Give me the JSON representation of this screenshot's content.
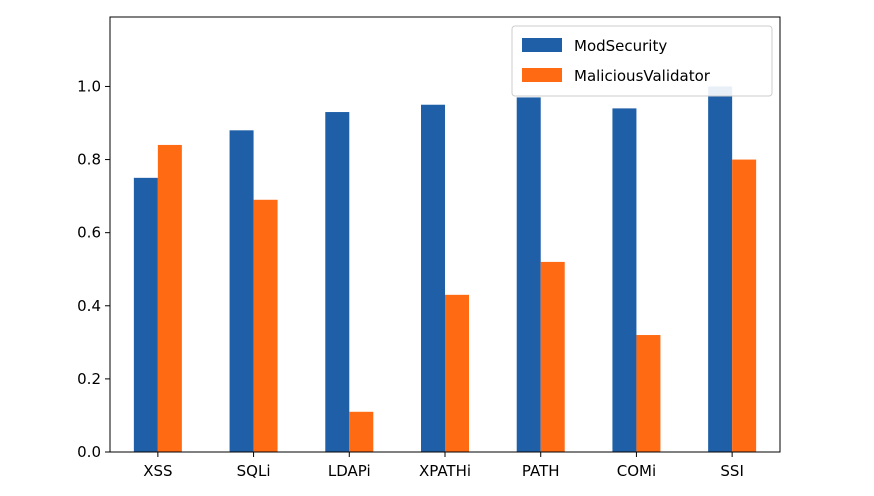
{
  "chart_data": {
    "type": "bar",
    "categories": [
      "XSS",
      "SQLi",
      "LDAPi",
      "XPATHi",
      "PATH",
      "COMi",
      "SSI"
    ],
    "series": [
      {
        "name": "ModSecurity",
        "color": "#1f5fa8",
        "values": [
          0.75,
          0.88,
          0.93,
          0.95,
          0.97,
          0.94,
          1.0
        ]
      },
      {
        "name": "MaliciousValidator",
        "color": "#ff6a13",
        "values": [
          0.84,
          0.69,
          0.11,
          0.43,
          0.52,
          0.32,
          0.8
        ]
      }
    ],
    "title": "",
    "xlabel": "",
    "ylabel": "",
    "ylim": [
      0,
      1.19
    ],
    "yticks": [
      "0.0",
      "0.2",
      "0.4",
      "0.6",
      "0.8",
      "1.0"
    ],
    "grid": false,
    "legend_position": "top-right"
  }
}
